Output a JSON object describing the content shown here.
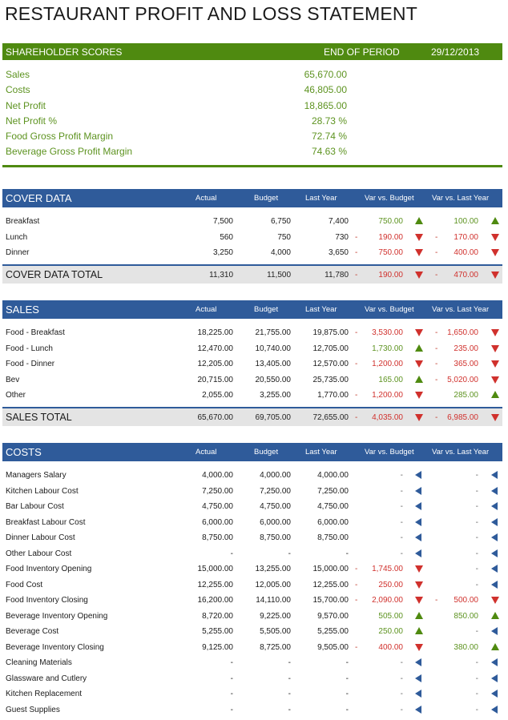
{
  "title": "RESTAURANT PROFIT AND LOSS STATEMENT",
  "shareholder": {
    "heading": "SHAREHOLDER SCORES",
    "period_label": "END OF PERIOD",
    "period_date": "29/12/2013",
    "rows": [
      {
        "label": "Sales",
        "value": "65,670.00"
      },
      {
        "label": "Costs",
        "value": "46,805.00"
      },
      {
        "label": "Net Profit",
        "value": "18,865.00"
      },
      {
        "label": "Net Profit %",
        "value": "28.73 %"
      },
      {
        "label": "Food Gross Profit Margin",
        "value": "72.74 %"
      },
      {
        "label": "Beverage Gross Profit Margin",
        "value": "74.63 %"
      }
    ]
  },
  "columns": {
    "actual": "Actual",
    "budget": "Budget",
    "last": "Last Year",
    "vb": "Var vs. Budget",
    "vl": "Var vs. Last Year"
  },
  "cover": {
    "heading": "COVER DATA",
    "rows": [
      {
        "label": "Breakfast",
        "actual": "7,500",
        "budget": "6,750",
        "last": "7,400",
        "vb": "750.00",
        "vb_dir": "up",
        "vb_dash": "",
        "vl": "100.00",
        "vl_dir": "up",
        "vl_dash": ""
      },
      {
        "label": "Lunch",
        "actual": "560",
        "budget": "750",
        "last": "730",
        "vb": "190.00",
        "vb_dir": "down",
        "vb_dash": "-",
        "vl": "170.00",
        "vl_dir": "down",
        "vl_dash": "-"
      },
      {
        "label": "Dinner",
        "actual": "3,250",
        "budget": "4,000",
        "last": "3,650",
        "vb": "750.00",
        "vb_dir": "down",
        "vb_dash": "-",
        "vl": "400.00",
        "vl_dir": "down",
        "vl_dash": "-"
      }
    ],
    "total": {
      "label": "COVER DATA TOTAL",
      "actual": "11,310",
      "budget": "11,500",
      "last": "11,780",
      "vb": "190.00",
      "vb_dir": "down",
      "vb_dash": "-",
      "vl": "470.00",
      "vl_dir": "down",
      "vl_dash": "-"
    }
  },
  "sales": {
    "heading": "SALES",
    "rows": [
      {
        "label": "Food - Breakfast",
        "actual": "18,225.00",
        "budget": "21,755.00",
        "last": "19,875.00",
        "vb": "3,530.00",
        "vb_dir": "down",
        "vb_dash": "-",
        "vl": "1,650.00",
        "vl_dir": "down",
        "vl_dash": "-"
      },
      {
        "label": "Food - Lunch",
        "actual": "12,470.00",
        "budget": "10,740.00",
        "last": "12,705.00",
        "vb": "1,730.00",
        "vb_dir": "up",
        "vb_dash": "",
        "vl": "235.00",
        "vl_dir": "down",
        "vl_dash": "-"
      },
      {
        "label": "Food - Dinner",
        "actual": "12,205.00",
        "budget": "13,405.00",
        "last": "12,570.00",
        "vb": "1,200.00",
        "vb_dir": "down",
        "vb_dash": "-",
        "vl": "365.00",
        "vl_dir": "down",
        "vl_dash": "-"
      },
      {
        "label": "Bev",
        "actual": "20,715.00",
        "budget": "20,550.00",
        "last": "25,735.00",
        "vb": "165.00",
        "vb_dir": "up",
        "vb_dash": "",
        "vl": "5,020.00",
        "vl_dir": "down",
        "vl_dash": "-"
      },
      {
        "label": "Other",
        "actual": "2,055.00",
        "budget": "3,255.00",
        "last": "1,770.00",
        "vb": "1,200.00",
        "vb_dir": "down",
        "vb_dash": "-",
        "vl": "285.00",
        "vl_dir": "up",
        "vl_dash": ""
      }
    ],
    "total": {
      "label": "SALES TOTAL",
      "actual": "65,670.00",
      "budget": "69,705.00",
      "last": "72,655.00",
      "vb": "4,035.00",
      "vb_dir": "down",
      "vb_dash": "-",
      "vl": "6,985.00",
      "vl_dir": "down",
      "vl_dash": "-"
    }
  },
  "costs": {
    "heading": "COSTS",
    "rows": [
      {
        "label": "Managers Salary",
        "actual": "4,000.00",
        "budget": "4,000.00",
        "last": "4,000.00",
        "vb": "-",
        "vb_dir": "left",
        "vb_dash": "",
        "vl": "-",
        "vl_dir": "left",
        "vl_dash": ""
      },
      {
        "label": "Kitchen Labour Cost",
        "actual": "7,250.00",
        "budget": "7,250.00",
        "last": "7,250.00",
        "vb": "-",
        "vb_dir": "left",
        "vb_dash": "",
        "vl": "-",
        "vl_dir": "left",
        "vl_dash": ""
      },
      {
        "label": "Bar Labour Cost",
        "actual": "4,750.00",
        "budget": "4,750.00",
        "last": "4,750.00",
        "vb": "-",
        "vb_dir": "left",
        "vb_dash": "",
        "vl": "-",
        "vl_dir": "left",
        "vl_dash": ""
      },
      {
        "label": "Breakfast Labour Cost",
        "actual": "6,000.00",
        "budget": "6,000.00",
        "last": "6,000.00",
        "vb": "-",
        "vb_dir": "left",
        "vb_dash": "",
        "vl": "-",
        "vl_dir": "left",
        "vl_dash": ""
      },
      {
        "label": "Dinner Labour Cost",
        "actual": "8,750.00",
        "budget": "8,750.00",
        "last": "8,750.00",
        "vb": "-",
        "vb_dir": "left",
        "vb_dash": "",
        "vl": "-",
        "vl_dir": "left",
        "vl_dash": ""
      },
      {
        "label": "Other Labour Cost",
        "actual": "-",
        "budget": "-",
        "last": "-",
        "vb": "-",
        "vb_dir": "left",
        "vb_dash": "",
        "vl": "-",
        "vl_dir": "left",
        "vl_dash": ""
      },
      {
        "label": "Food Inventory Opening",
        "actual": "15,000.00",
        "budget": "13,255.00",
        "last": "15,000.00",
        "vb": "1,745.00",
        "vb_dir": "down",
        "vb_dash": "-",
        "vl": "-",
        "vl_dir": "left",
        "vl_dash": ""
      },
      {
        "label": "Food Cost",
        "actual": "12,255.00",
        "budget": "12,005.00",
        "last": "12,255.00",
        "vb": "250.00",
        "vb_dir": "down",
        "vb_dash": "-",
        "vl": "-",
        "vl_dir": "left",
        "vl_dash": ""
      },
      {
        "label": "Food Inventory Closing",
        "actual": "16,200.00",
        "budget": "14,110.00",
        "last": "15,700.00",
        "vb": "2,090.00",
        "vb_dir": "down",
        "vb_dash": "-",
        "vl": "500.00",
        "vl_dir": "down",
        "vl_dash": "-"
      },
      {
        "label": "Beverage Inventory Opening",
        "actual": "8,720.00",
        "budget": "9,225.00",
        "last": "9,570.00",
        "vb": "505.00",
        "vb_dir": "up",
        "vb_dash": "",
        "vl": "850.00",
        "vl_dir": "up",
        "vl_dash": ""
      },
      {
        "label": "Beverage Cost",
        "actual": "5,255.00",
        "budget": "5,505.00",
        "last": "5,255.00",
        "vb": "250.00",
        "vb_dir": "up",
        "vb_dash": "",
        "vl": "-",
        "vl_dir": "left",
        "vl_dash": ""
      },
      {
        "label": "Beverage Inventory Closing",
        "actual": "9,125.00",
        "budget": "8,725.00",
        "last": "9,505.00",
        "vb": "400.00",
        "vb_dir": "down",
        "vb_dash": "-",
        "vl": "380.00",
        "vl_dir": "up",
        "vl_dash": ""
      },
      {
        "label": "Cleaning Materials",
        "actual": "-",
        "budget": "-",
        "last": "-",
        "vb": "-",
        "vb_dir": "left",
        "vb_dash": "",
        "vl": "-",
        "vl_dir": "left",
        "vl_dash": ""
      },
      {
        "label": "Glassware and Cutlery",
        "actual": "-",
        "budget": "-",
        "last": "-",
        "vb": "-",
        "vb_dir": "left",
        "vb_dash": "",
        "vl": "-",
        "vl_dir": "left",
        "vl_dash": ""
      },
      {
        "label": "Kitchen Replacement",
        "actual": "-",
        "budget": "-",
        "last": "-",
        "vb": "-",
        "vb_dir": "left",
        "vb_dash": "",
        "vl": "-",
        "vl_dir": "left",
        "vl_dash": ""
      },
      {
        "label": "Guest Supplies",
        "actual": "-",
        "budget": "-",
        "last": "-",
        "vb": "-",
        "vb_dir": "left",
        "vb_dash": "",
        "vl": "-",
        "vl_dir": "left",
        "vl_dash": ""
      }
    ]
  }
}
